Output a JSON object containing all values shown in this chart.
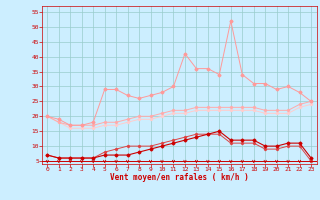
{
  "x": [
    0,
    1,
    2,
    3,
    4,
    5,
    6,
    7,
    8,
    9,
    10,
    11,
    12,
    13,
    14,
    15,
    16,
    17,
    18,
    19,
    20,
    21,
    22,
    23
  ],
  "line1": [
    7,
    6,
    6,
    6,
    6,
    7,
    7,
    7,
    8,
    9,
    10,
    11,
    12,
    13,
    14,
    15,
    12,
    12,
    12,
    10,
    10,
    11,
    11,
    6
  ],
  "line2": [
    7,
    6,
    6,
    6,
    6,
    8,
    9,
    10,
    10,
    10,
    11,
    12,
    13,
    14,
    14,
    14,
    11,
    11,
    11,
    9,
    9,
    10,
    10,
    5
  ],
  "line3": [
    20,
    19,
    17,
    17,
    18,
    29,
    29,
    27,
    26,
    27,
    28,
    30,
    41,
    36,
    36,
    34,
    52,
    34,
    31,
    31,
    29,
    30,
    28,
    25
  ],
  "line4": [
    20,
    18,
    17,
    17,
    17,
    18,
    18,
    19,
    20,
    20,
    21,
    22,
    22,
    23,
    23,
    23,
    23,
    23,
    23,
    22,
    22,
    22,
    24,
    25
  ],
  "line5": [
    20,
    18,
    16,
    16,
    16,
    17,
    17,
    18,
    19,
    19,
    20,
    21,
    21,
    22,
    22,
    22,
    22,
    22,
    22,
    21,
    21,
    21,
    23,
    24
  ],
  "bg_color": "#cceeff",
  "grid_color": "#99cccc",
  "line1_color": "#cc0000",
  "line2_color": "#dd4444",
  "line3_color": "#ff9999",
  "line4_color": "#ffaaaa",
  "line5_color": "#ffcccc",
  "arrow_color": "#cc0000",
  "xlabel": "Vent moyen/en rafales ( km/h )",
  "ylim": [
    4,
    57
  ],
  "yticks": [
    5,
    10,
    15,
    20,
    25,
    30,
    35,
    40,
    45,
    50,
    55
  ],
  "xticks": [
    0,
    1,
    2,
    3,
    4,
    5,
    6,
    7,
    8,
    9,
    10,
    11,
    12,
    13,
    14,
    15,
    16,
    17,
    18,
    19,
    20,
    21,
    22,
    23
  ]
}
